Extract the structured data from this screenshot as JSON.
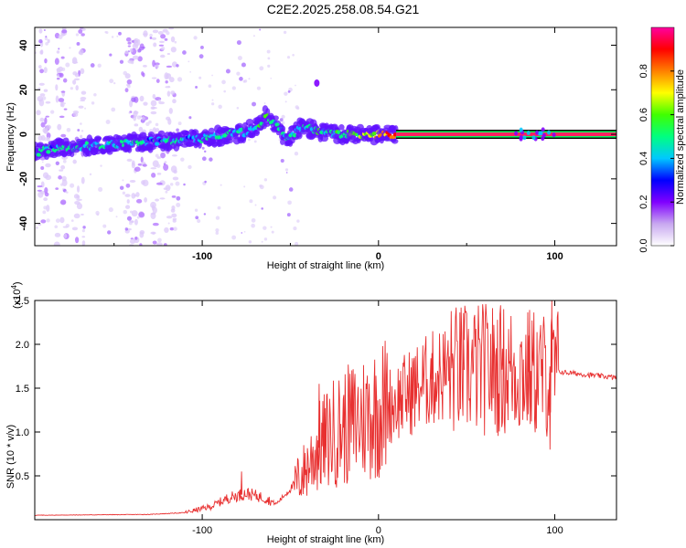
{
  "title": "C2E2.2025.258.08.54.G21",
  "chart_data": [
    {
      "type": "heatmap",
      "xlabel": "Height of straight line (km)",
      "ylabel": "Frequency (Hz)",
      "xlim": [
        -195,
        135
      ],
      "ylim": [
        -50,
        48
      ],
      "xticks": [
        -100,
        0,
        100
      ],
      "yticks": [
        -40,
        -20,
        0,
        20,
        40
      ],
      "colorbar": {
        "label": "Normalized spectral amplitude",
        "range": [
          0,
          1
        ],
        "ticks": [
          "0.0",
          "0.2",
          "0.4",
          "0.6",
          "0.8"
        ],
        "tick_values": [
          0,
          0.2,
          0.4,
          0.6,
          0.8
        ],
        "colors": [
          "#ffffff",
          "#c8a8f0",
          "#8000ff",
          "#0000ff",
          "#00c8ff",
          "#00ff80",
          "#40ff00",
          "#ffff00",
          "#ff8000",
          "#ff0000",
          "#ff00a0"
        ]
      },
      "trace": [
        {
          "x": -195,
          "f": -8,
          "amp": 0.3
        },
        {
          "x": -180,
          "f": -6,
          "amp": 0.35
        },
        {
          "x": -160,
          "f": -5,
          "amp": 0.35
        },
        {
          "x": -140,
          "f": -4,
          "amp": 0.35
        },
        {
          "x": -120,
          "f": -3,
          "amp": 0.3
        },
        {
          "x": -100,
          "f": -2,
          "amp": 0.35
        },
        {
          "x": -85,
          "f": 0,
          "amp": 0.35
        },
        {
          "x": -75,
          "f": 1,
          "amp": 0.35
        },
        {
          "x": -70,
          "f": 3,
          "amp": 0.35
        },
        {
          "x": -64,
          "f": 8,
          "amp": 0.45
        },
        {
          "x": -58,
          "f": 5,
          "amp": 0.35
        },
        {
          "x": -52,
          "f": -3,
          "amp": 0.35
        },
        {
          "x": -45,
          "f": 3,
          "amp": 0.35
        },
        {
          "x": -35,
          "f": 2,
          "amp": 0.4
        },
        {
          "x": -25,
          "f": 0,
          "amp": 0.4
        },
        {
          "x": -10,
          "f": 0,
          "amp": 0.5
        },
        {
          "x": 0,
          "f": 0,
          "amp": 0.6
        },
        {
          "x": 10,
          "f": 0,
          "amp": 0.8
        },
        {
          "x": 135,
          "f": 0,
          "amp": 0.95
        }
      ]
    },
    {
      "type": "line",
      "xlabel": "Height of straight line (km)",
      "ylabel": "SNR (10 * v/v)",
      "yscale_label": "(x10",
      "yscale_exp": "4",
      "yscale_close": ")",
      "xlim": [
        -195,
        135
      ],
      "ylim": [
        0,
        2.5
      ],
      "xticks": [
        -100,
        0,
        100
      ],
      "yticks": [
        "0.5",
        "1.0",
        "1.5",
        "2.0",
        "2.5"
      ],
      "ytick_values": [
        0.5,
        1.0,
        1.5,
        2.0,
        2.5
      ],
      "color": "#e83030",
      "envelope": {
        "x": [
          -195,
          -130,
          -110,
          -95,
          -85,
          -75,
          -65,
          -58,
          -50,
          -42,
          -35,
          -25,
          -10,
          0,
          10,
          25,
          40,
          60,
          80,
          95,
          100,
          105,
          120,
          135
        ],
        "y": [
          0.05,
          0.06,
          0.08,
          0.15,
          0.25,
          0.3,
          0.25,
          0.18,
          0.35,
          0.55,
          0.8,
          1.0,
          1.15,
          1.25,
          1.35,
          1.55,
          1.7,
          1.72,
          1.7,
          1.65,
          1.7,
          1.68,
          1.65,
          1.62
        ]
      },
      "spikes": [
        {
          "x": -78,
          "y": 0.55
        },
        {
          "x": -34,
          "y": 1.55
        },
        {
          "x": -20,
          "y": 1.4
        },
        {
          "x": 30,
          "y": 1.9
        },
        {
          "x": 48,
          "y": 2.05
        },
        {
          "x": 70,
          "y": 1.95
        },
        {
          "x": 85,
          "y": 2.1
        },
        {
          "x": 98,
          "y": 2.5
        },
        {
          "x": 97,
          "y": 0.8
        }
      ]
    }
  ]
}
